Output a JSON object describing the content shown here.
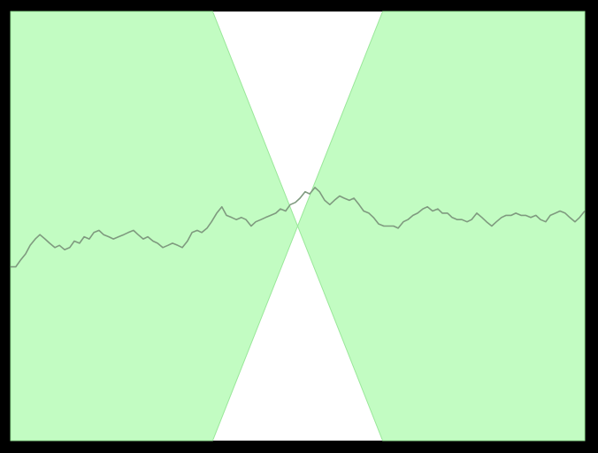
{
  "chart_data": {
    "type": "line",
    "title": "",
    "xlabel": "",
    "ylabel": "",
    "grid": false,
    "legend": "none",
    "xlim": [
      0,
      1
    ],
    "ylim": [
      -1,
      1
    ],
    "colors": {
      "background": "#000000",
      "plot_area": "#ffffff",
      "cone_fill": "#c2fcc2",
      "cone_edge": "#9ae79a",
      "line": "#7f9a7f"
    },
    "cone": {
      "vertex": [
        0.5,
        0.0
      ],
      "upper_bound_at_edges": [
        1.0,
        1.0
      ],
      "upper_bound_crosses_top_at_x": [
        0.352,
        0.648
      ]
    },
    "series": [
      {
        "x": [
          0.0,
          0.009,
          0.017,
          0.026,
          0.034,
          0.043,
          0.051,
          0.06,
          0.068,
          0.077,
          0.085,
          0.094,
          0.103,
          0.111,
          0.12,
          0.128,
          0.137,
          0.145,
          0.154,
          0.162,
          0.171,
          0.179,
          0.188,
          0.197,
          0.205,
          0.214,
          0.222,
          0.231,
          0.239,
          0.248,
          0.256,
          0.265,
          0.274,
          0.282,
          0.291,
          0.299,
          0.308,
          0.316,
          0.325,
          0.333,
          0.342,
          0.35,
          0.359,
          0.368,
          0.376,
          0.385,
          0.393,
          0.402,
          0.41,
          0.419,
          0.427,
          0.436,
          0.444,
          0.453,
          0.462,
          0.47,
          0.479,
          0.487,
          0.496,
          0.504,
          0.513,
          0.521,
          0.53,
          0.538,
          0.547,
          0.556,
          0.564,
          0.573,
          0.581,
          0.59,
          0.598,
          0.607,
          0.615,
          0.624,
          0.632,
          0.641,
          0.65,
          0.658,
          0.667,
          0.675,
          0.684,
          0.692,
          0.701,
          0.709,
          0.718,
          0.726,
          0.735,
          0.744,
          0.752,
          0.761,
          0.769,
          0.778,
          0.786,
          0.795,
          0.803,
          0.812,
          0.821,
          0.829,
          0.838,
          0.846,
          0.855,
          0.863,
          0.872,
          0.88,
          0.889,
          0.897,
          0.906,
          0.915,
          0.923,
          0.932,
          0.94,
          0.949,
          0.957,
          0.966,
          0.974,
          0.983,
          0.991,
          1.0
        ],
        "values": [
          -0.19,
          -0.19,
          -0.16,
          -0.13,
          -0.09,
          -0.06,
          -0.04,
          -0.06,
          -0.08,
          -0.1,
          -0.09,
          -0.11,
          -0.1,
          -0.07,
          -0.08,
          -0.05,
          -0.06,
          -0.03,
          -0.02,
          -0.04,
          -0.05,
          -0.06,
          -0.05,
          -0.04,
          -0.03,
          -0.02,
          -0.04,
          -0.06,
          -0.05,
          -0.07,
          -0.08,
          -0.1,
          -0.09,
          -0.08,
          -0.09,
          -0.1,
          -0.07,
          -0.03,
          -0.02,
          -0.03,
          -0.01,
          0.02,
          0.06,
          0.09,
          0.05,
          0.04,
          0.03,
          0.04,
          0.03,
          -0.0,
          0.02,
          0.03,
          0.04,
          0.05,
          0.06,
          0.08,
          0.07,
          0.1,
          0.11,
          0.13,
          0.16,
          0.15,
          0.18,
          0.16,
          0.12,
          0.1,
          0.12,
          0.14,
          0.13,
          0.12,
          0.13,
          0.1,
          0.07,
          0.06,
          0.04,
          0.01,
          -0.0,
          0.0,
          -0.0,
          -0.01,
          0.02,
          0.03,
          0.05,
          0.06,
          0.08,
          0.09,
          0.07,
          0.08,
          0.06,
          0.06,
          0.04,
          0.03,
          0.03,
          0.02,
          0.03,
          0.06,
          0.04,
          0.02,
          0.0,
          0.02,
          0.04,
          0.05,
          0.05,
          0.06,
          0.05,
          0.05,
          0.04,
          0.05,
          0.03,
          0.02,
          0.05,
          0.06,
          0.07,
          0.06,
          0.04,
          0.02,
          0.04,
          0.07
        ]
      }
    ]
  }
}
